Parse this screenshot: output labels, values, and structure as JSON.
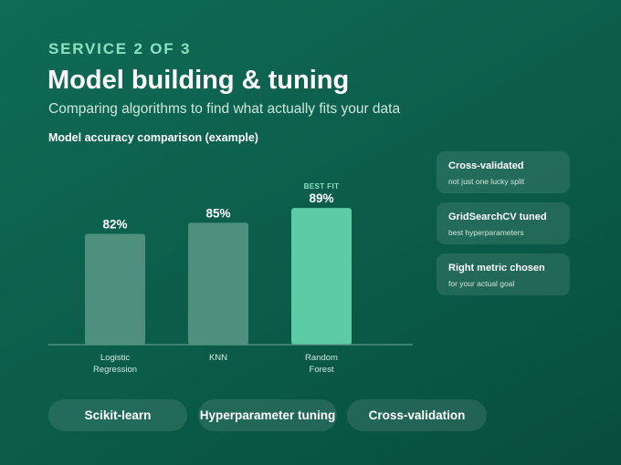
{
  "header": {
    "eyebrow": "SERVICE 2 OF 3",
    "title": "Model building & tuning",
    "subtitle": "Comparing algorithms to find what actually fits your data"
  },
  "chart_data": {
    "type": "bar",
    "title": "Model accuracy comparison (example)",
    "categories": [
      [
        "Logistic",
        "Regression"
      ],
      [
        "KNN"
      ],
      [
        "Random",
        "Forest"
      ]
    ],
    "values": [
      82,
      85,
      89
    ],
    "value_labels": [
      "82%",
      "85%",
      "89%"
    ],
    "highlight_index": 2,
    "highlight_label": "BEST FIT",
    "ylim": [
      52,
      91
    ],
    "colors": {
      "bar": "#4e8f7e",
      "highlight": "#5ecba7",
      "highlight_label": "#8fe0c0",
      "axis": "#5a9a86",
      "tick_text": "#d4e8e0"
    }
  },
  "cards": [
    {
      "title": "Cross-validated",
      "subtitle": "not just one lucky split"
    },
    {
      "title": "GridSearchCV tuned",
      "subtitle": "best hyperparameters"
    },
    {
      "title": "Right metric chosen",
      "subtitle": "for your actual goal"
    }
  ],
  "pills": [
    "Scikit-learn",
    "Hyperparameter tuning",
    "Cross-validation"
  ]
}
